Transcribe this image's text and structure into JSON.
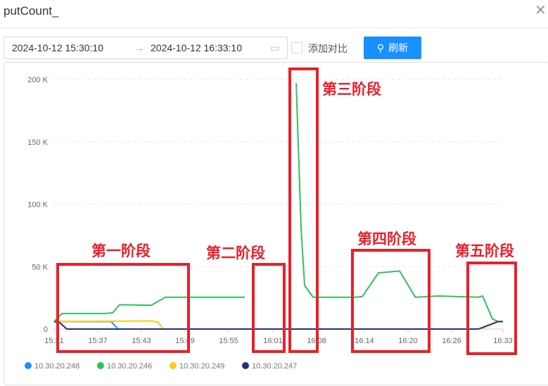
{
  "header": {
    "title": "putCount_",
    "close_icon": "close-icon"
  },
  "toolbar": {
    "start": "2024-10-12 15:30:10",
    "separator": "→",
    "end": "2024-10-12 16:33:10",
    "compare_label": "添加对比",
    "compare_checked": false,
    "refresh_label": "刷新"
  },
  "chart_data": {
    "type": "line",
    "xlim": [
      "15:31",
      "16:33"
    ],
    "x_ticks": [
      "15:31",
      "15:37",
      "15:43",
      "15:49",
      "15:55",
      "16:01",
      "16:08",
      "16:14",
      "16:20",
      "16:26",
      "16:33"
    ],
    "ylim": [
      0,
      200000
    ],
    "y_ticks": [
      "0",
      "50 K",
      "100 K",
      "150 K",
      "200 K"
    ],
    "grid": "horizontal dashed",
    "legend": "bottom-left",
    "series": [
      {
        "name": "10.30.20.248",
        "color": "#1890ff",
        "points": [
          [
            "15:31:00",
            6000
          ],
          [
            "15:38:52",
            6000
          ],
          [
            "15:39:50",
            0
          ]
        ]
      },
      {
        "name": "10.30.20.246",
        "color": "#2fc25b",
        "segments": [
          [
            [
              "15:31:00",
              6000
            ],
            [
              "15:32:04",
              12500
            ],
            [
              "15:38:06",
              12500
            ],
            [
              "15:39:04",
              13000
            ],
            [
              "15:40:02",
              19500
            ],
            [
              "15:44:24",
              19000
            ],
            [
              "15:46:21",
              25500
            ],
            [
              "15:57:20",
              25500
            ]
          ],
          [
            [
              "16:04:26",
              197000
            ],
            [
              "16:05:07",
              80000
            ],
            [
              "16:05:36",
              35000
            ],
            [
              "16:06:46",
              25500
            ],
            [
              "16:12:36",
              25500
            ],
            [
              "16:13:34",
              26000
            ],
            [
              "16:15:48",
              45000
            ],
            [
              "16:18:43",
              46500
            ],
            [
              "16:20:54",
              25500
            ],
            [
              "16:24:00",
              26500
            ],
            [
              "16:29:36",
              25500
            ],
            [
              "16:30:11",
              26500
            ],
            [
              "16:31:33",
              8000
            ],
            [
              "16:32:20",
              6000
            ],
            [
              "16:33:00",
              6000
            ]
          ]
        ]
      },
      {
        "name": "10.30.20.249",
        "color": "#facc14",
        "segments": [
          [
            [
              "15:31:00",
              6000
            ],
            [
              "15:44:24",
              6500
            ],
            [
              "15:45:23",
              5500
            ],
            [
              "15:46:04",
              0
            ]
          ],
          [
            [
              "16:30:00",
              0
            ],
            [
              "16:32:20",
              6000
            ],
            [
              "16:33:00",
              6000
            ]
          ]
        ]
      },
      {
        "name": "10.30.20.247",
        "color": "#223273",
        "points": [
          [
            "15:31:00",
            6000
          ],
          [
            "15:31:48",
            5000
          ],
          [
            "15:32:45",
            0
          ],
          [
            "16:29:36",
            0
          ],
          [
            "16:32:20",
            6000
          ],
          [
            "16:33:00",
            6000
          ]
        ]
      }
    ],
    "annotations": [
      "第一阶段",
      "第二阶段",
      "第三阶段",
      "第四阶段",
      "第五阶段"
    ]
  }
}
